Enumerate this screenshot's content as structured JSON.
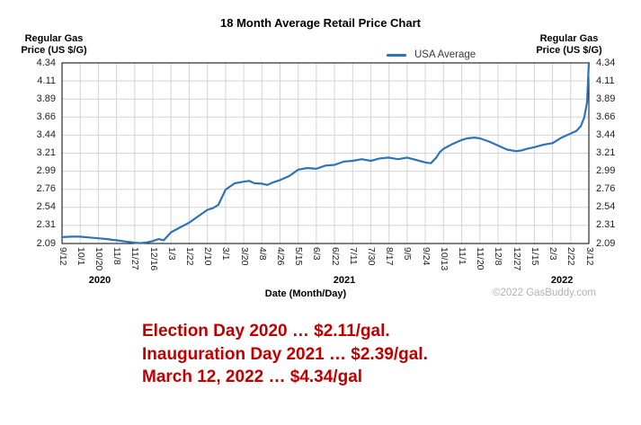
{
  "title": "18 Month Average Retail Price Chart",
  "left_axis_title": {
    "line1": "Regular Gas",
    "line2": "Price (US $/G)"
  },
  "right_axis_title": {
    "line1": "Regular Gas",
    "line2": "Price (US $/G)"
  },
  "legend": {
    "label": "USA Average",
    "line_color": "#2e73b8"
  },
  "watermark": "©2022 GasBuddy.com",
  "annotations": {
    "color": "#c00000",
    "line1": "Election Day 2020 … $2.11/gal.",
    "line2": "Inauguration Day 2021 … $2.39/gal.",
    "line3": "March 12, 2022 … $4.34/gal"
  },
  "chart_data": {
    "type": "line",
    "title": "18 Month Average Retail Price Chart",
    "x_axis_label": "Date (Month/Day)",
    "y_axis_label": "Regular Gas Price (US $/G)",
    "y_range": [
      2.09,
      4.34
    ],
    "y_tick_labels": [
      "4.34",
      "4.11",
      "3.89",
      "3.66",
      "3.44",
      "3.21",
      "2.99",
      "2.76",
      "2.54",
      "2.31",
      "2.09"
    ],
    "x_tick_labels": [
      "9/12",
      "10/1",
      "10/20",
      "11/8",
      "11/27",
      "12/16",
      "1/3",
      "1/22",
      "2/10",
      "3/1",
      "3/20",
      "4/8",
      "4/26",
      "5/15",
      "6/3",
      "6/22",
      "7/11",
      "7/30",
      "8/17",
      "9/5",
      "9/24",
      "10/13",
      "11/1",
      "11/20",
      "12/8",
      "12/27",
      "1/15",
      "2/3",
      "2/22",
      "3/12"
    ],
    "year_labels": [
      {
        "text": "2020",
        "tick_center": 2.08
      },
      {
        "text": "2021",
        "tick_center": 15.54
      },
      {
        "text": "2022",
        "tick_center": 27.52
      }
    ],
    "grid": true,
    "grid_color": "#d4d4d4",
    "border_color": "#000000",
    "legend_position": "top",
    "series": [
      {
        "name": "USA Average",
        "color": "#2e73b8",
        "points": [
          [
            0,
            2.17
          ],
          [
            0.5,
            2.175
          ],
          [
            1,
            2.175
          ],
          [
            1.5,
            2.165
          ],
          [
            2,
            2.155
          ],
          [
            2.5,
            2.145
          ],
          [
            2.8,
            2.135
          ],
          [
            3,
            2.13
          ],
          [
            3.5,
            2.115
          ],
          [
            4,
            2.1
          ],
          [
            4.3,
            2.095
          ],
          [
            4.7,
            2.105
          ],
          [
            5,
            2.12
          ],
          [
            5.3,
            2.145
          ],
          [
            5.6,
            2.13
          ],
          [
            6,
            2.23
          ],
          [
            6.5,
            2.29
          ],
          [
            7,
            2.35
          ],
          [
            7.5,
            2.43
          ],
          [
            8,
            2.51
          ],
          [
            8.3,
            2.53
          ],
          [
            8.6,
            2.57
          ],
          [
            9,
            2.76
          ],
          [
            9.5,
            2.84
          ],
          [
            10,
            2.86
          ],
          [
            10.3,
            2.87
          ],
          [
            10.6,
            2.84
          ],
          [
            11,
            2.835
          ],
          [
            11.3,
            2.82
          ],
          [
            11.6,
            2.85
          ],
          [
            12,
            2.88
          ],
          [
            12.5,
            2.93
          ],
          [
            13,
            3.01
          ],
          [
            13.5,
            3.03
          ],
          [
            14,
            3.02
          ],
          [
            14.5,
            3.06
          ],
          [
            15,
            3.07
          ],
          [
            15.5,
            3.11
          ],
          [
            16,
            3.12
          ],
          [
            16.5,
            3.14
          ],
          [
            17,
            3.12
          ],
          [
            17.5,
            3.15
          ],
          [
            18,
            3.16
          ],
          [
            18.5,
            3.14
          ],
          [
            19,
            3.16
          ],
          [
            19.5,
            3.13
          ],
          [
            20,
            3.1
          ],
          [
            20.3,
            3.09
          ],
          [
            20.6,
            3.16
          ],
          [
            20.8,
            3.23
          ],
          [
            21,
            3.27
          ],
          [
            21.5,
            3.33
          ],
          [
            22,
            3.38
          ],
          [
            22.3,
            3.4
          ],
          [
            22.7,
            3.41
          ],
          [
            23,
            3.4
          ],
          [
            23.5,
            3.36
          ],
          [
            24,
            3.31
          ],
          [
            24.5,
            3.26
          ],
          [
            25,
            3.24
          ],
          [
            25.3,
            3.25
          ],
          [
            25.6,
            3.27
          ],
          [
            26,
            3.29
          ],
          [
            26.5,
            3.32
          ],
          [
            27,
            3.34
          ],
          [
            27.5,
            3.41
          ],
          [
            28,
            3.46
          ],
          [
            28.3,
            3.49
          ],
          [
            28.55,
            3.55
          ],
          [
            28.75,
            3.66
          ],
          [
            28.9,
            3.85
          ],
          [
            29,
            4.34
          ]
        ]
      }
    ]
  }
}
